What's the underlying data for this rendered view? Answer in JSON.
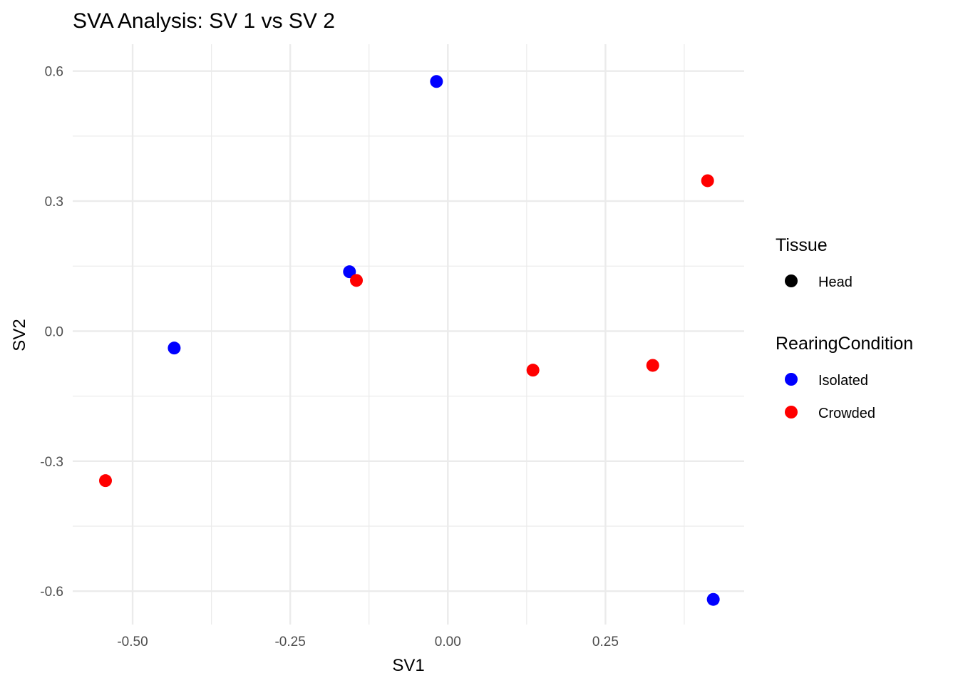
{
  "chart_data": {
    "type": "scatter",
    "title": "SVA Analysis: SV 1  vs SV 2",
    "xlabel": "SV1",
    "ylabel": "SV2",
    "xlim": [
      -0.595,
      0.47
    ],
    "ylim": [
      -0.677,
      0.662
    ],
    "x_ticks": [
      -0.5,
      -0.25,
      0.0,
      0.25
    ],
    "x_tick_labels": [
      "-0.50",
      "-0.25",
      "0.00",
      "0.25"
    ],
    "y_ticks": [
      -0.6,
      -0.3,
      0.0,
      0.3,
      0.6
    ],
    "y_tick_labels": [
      "-0.6",
      "-0.3",
      "0.0",
      "0.3",
      "0.6"
    ],
    "x_minor_ticks": [
      -0.625,
      -0.375,
      -0.125,
      0.125,
      0.375
    ],
    "y_minor_ticks": [
      -0.45,
      -0.15,
      0.15,
      0.45
    ],
    "grid": true,
    "colors": {
      "Isolated": "#0000FF",
      "Crowded": "#FF0000",
      "grid": "#EBEBEB",
      "text": "#000000",
      "tick_text": "#4D4D4D"
    },
    "series": [
      {
        "name": "Isolated",
        "color": "#0000FF",
        "points": [
          {
            "x": -0.018,
            "y": 0.576
          },
          {
            "x": -0.156,
            "y": 0.137
          },
          {
            "x": -0.434,
            "y": -0.039
          },
          {
            "x": 0.421,
            "y": -0.619
          }
        ]
      },
      {
        "name": "Crowded",
        "color": "#FF0000",
        "points": [
          {
            "x": 0.412,
            "y": 0.347
          },
          {
            "x": -0.145,
            "y": 0.117
          },
          {
            "x": 0.135,
            "y": -0.09
          },
          {
            "x": 0.325,
            "y": -0.079
          },
          {
            "x": -0.543,
            "y": -0.345
          }
        ]
      }
    ],
    "legend": {
      "placement": "right",
      "groups": [
        {
          "title": "Tissue",
          "entries": [
            {
              "label": "Head",
              "color": "#000000"
            }
          ]
        },
        {
          "title": "RearingCondition",
          "entries": [
            {
              "label": "Isolated",
              "color": "#0000FF"
            },
            {
              "label": "Crowded",
              "color": "#FF0000"
            }
          ]
        }
      ]
    }
  }
}
